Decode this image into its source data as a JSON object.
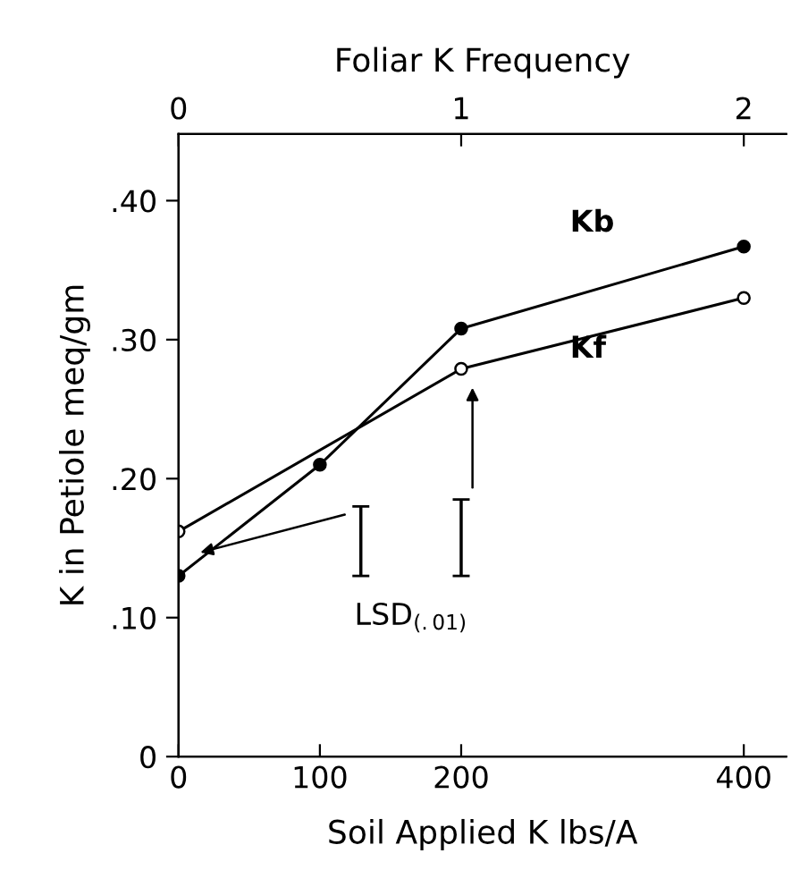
{
  "chart_data": {
    "type": "line",
    "xlabel": "Soil Applied K lbs/A",
    "ylabel": "K in Petiole meq/gm",
    "x2label": "Foliar K Frequency",
    "xlim": [
      0,
      430
    ],
    "xticks": [
      0,
      100,
      200,
      400
    ],
    "x2lim": [
      0,
      2.15
    ],
    "x2ticks": [
      0,
      1,
      2
    ],
    "ylim": [
      0,
      0.448
    ],
    "yticks": [
      {
        "value": 0,
        "label": "0"
      },
      {
        "value": 0.1,
        "label": ".10"
      },
      {
        "value": 0.2,
        "label": ".20"
      },
      {
        "value": 0.3,
        "label": ".30"
      },
      {
        "value": 0.4,
        "label": ".40"
      }
    ],
    "grid": false,
    "legend": false,
    "line_style": "solid",
    "series": [
      {
        "name": "Kb",
        "color": "#000000",
        "x": [
          0,
          100,
          200,
          400
        ],
        "values": [
          0.13,
          0.21,
          0.308,
          0.367
        ],
        "marker": "circle"
      },
      {
        "name": "Kf",
        "color": "#000000",
        "x": [
          0,
          200,
          400
        ],
        "values": [
          0.162,
          0.279,
          0.33
        ],
        "marker": "circle_open"
      },
      {
        "type": "bar",
        "color": "#000000",
        "x": [
          129,
          200
        ],
        "base": [
          0.13,
          0.13
        ],
        "values": [
          0.05,
          0.055
        ]
      }
    ],
    "annotations": [
      "LSD$_{(.01)}$"
    ]
  }
}
